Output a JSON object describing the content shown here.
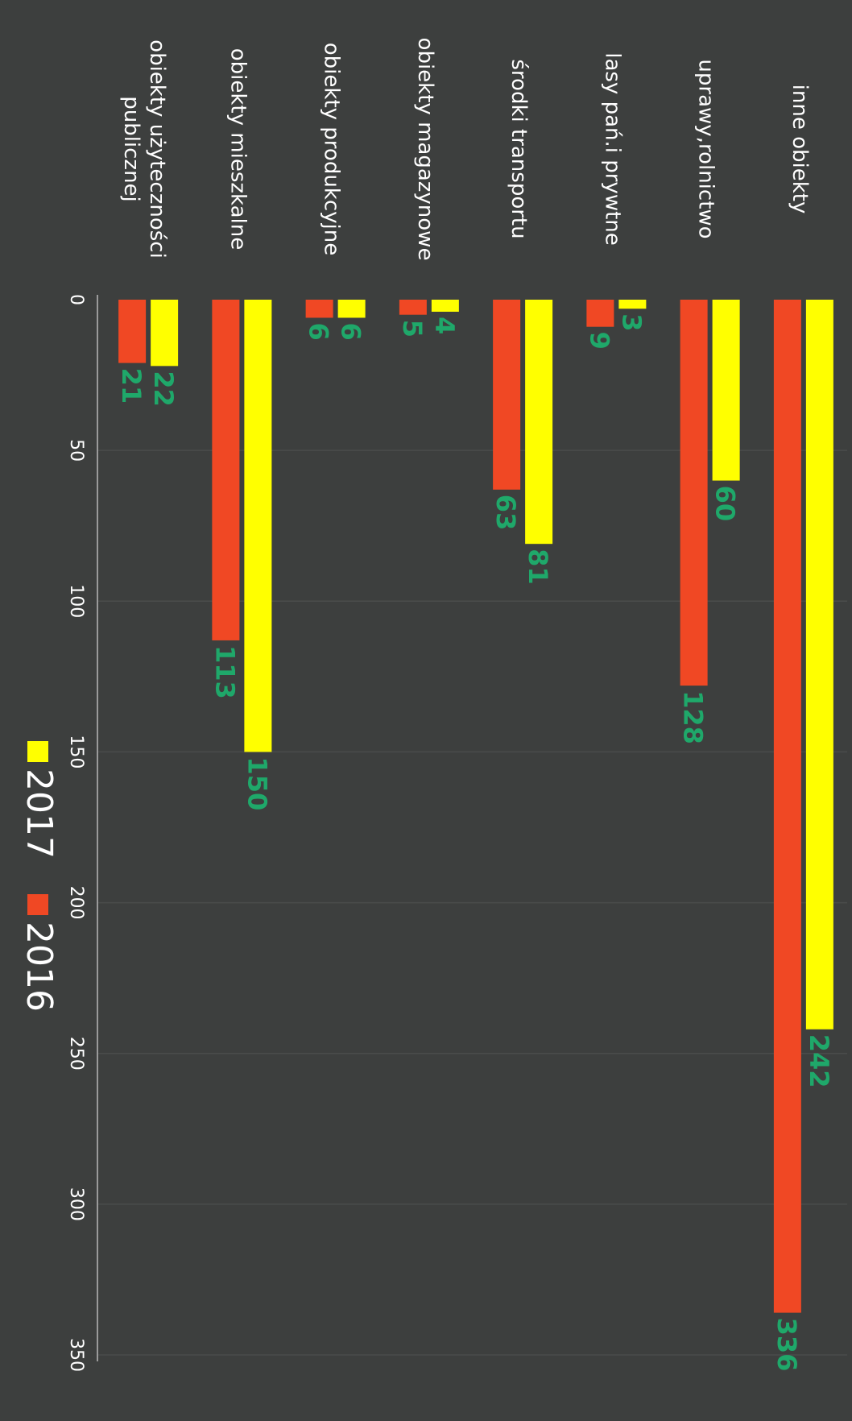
{
  "chart_data": {
    "type": "bar",
    "orientation": "horizontal",
    "categories": [
      "inne obiekty",
      "uprawy,rolnictwo",
      "lasy pań.i prywtne",
      "środki transportu",
      "obiekty magazynowe",
      "obiekty produkcyjne",
      "obiekty mieszkalne",
      "obiekty użyteczności publicznej"
    ],
    "series": [
      {
        "name": "2017",
        "values": [
          242,
          60,
          3,
          81,
          4,
          6,
          150,
          22
        ],
        "color": "#ffff00"
      },
      {
        "name": "2016",
        "values": [
          336,
          128,
          9,
          63,
          5,
          6,
          113,
          21
        ],
        "color": "#f04824"
      }
    ],
    "xlim": [
      0,
      350
    ],
    "ticks": [
      "0",
      "50",
      "100",
      "150",
      "200",
      "250",
      "300",
      "350"
    ],
    "grid": true,
    "legend_position": "bottom",
    "data_label_color": "#1fa86a",
    "background_color": "#3d3f3e",
    "rotation": "chart printed rotated 90 degrees clockwise"
  }
}
